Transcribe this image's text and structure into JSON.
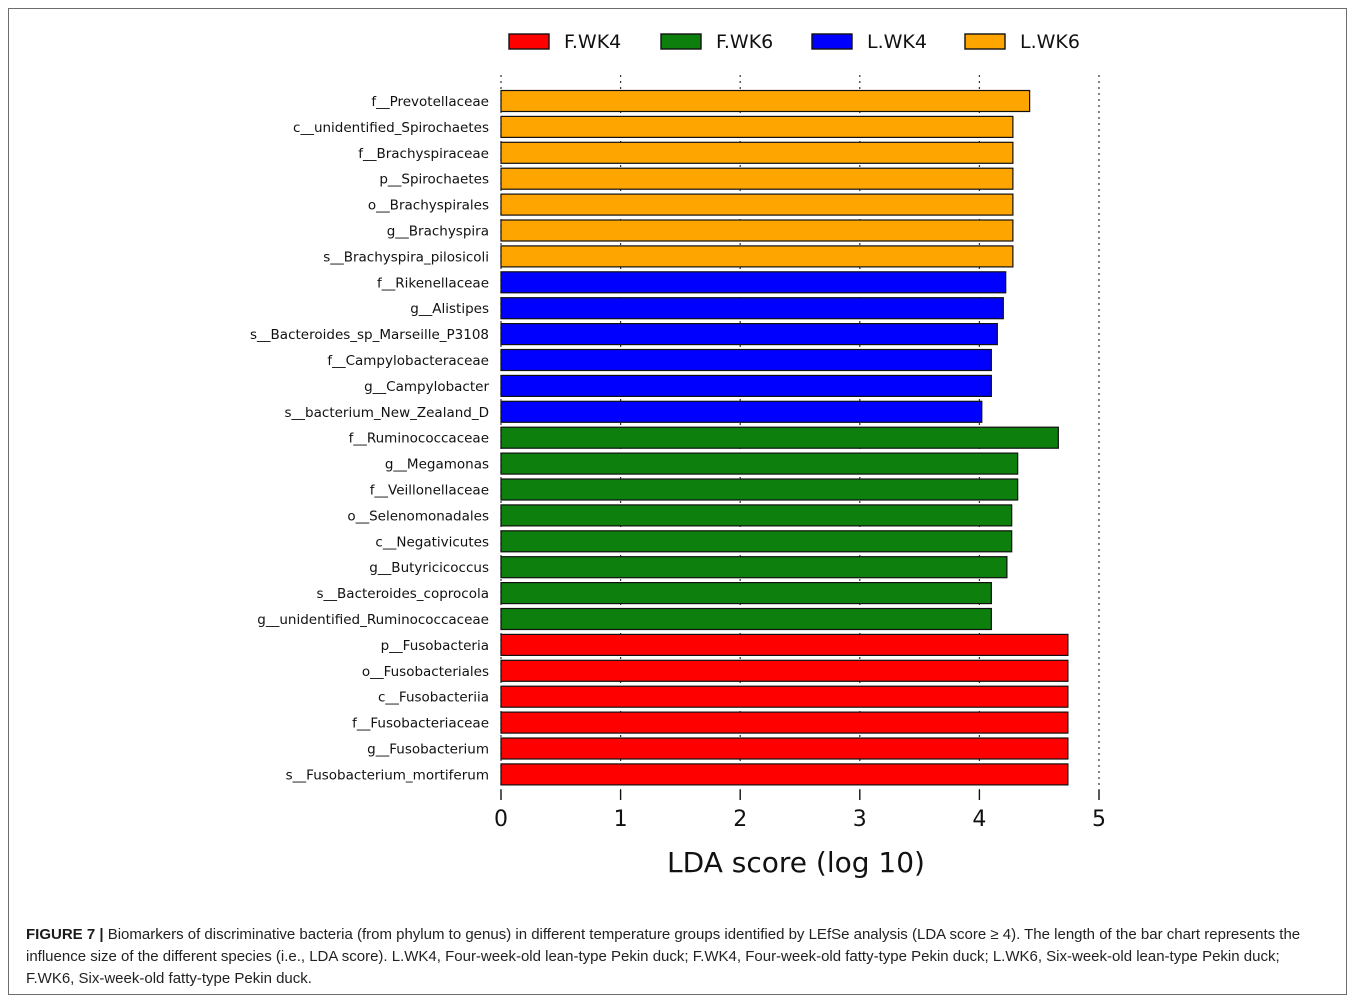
{
  "chart_data": {
    "type": "bar",
    "orientation": "horizontal",
    "xlabel": "LDA score (log 10)",
    "xlim": [
      0,
      5
    ],
    "xticks": [
      "0",
      "1",
      "2",
      "3",
      "4",
      "5"
    ],
    "grid": true,
    "legend_position": "top",
    "legend": [
      {
        "name": "F.WK4",
        "color": "#ff0000"
      },
      {
        "name": "F.WK6",
        "color": "#0d7f0d"
      },
      {
        "name": "L.WK4",
        "color": "#0000ff"
      },
      {
        "name": "L.WK6",
        "color": "#ffa500"
      }
    ],
    "categories": [
      "f__Prevotellaceae",
      "c__unidentified_Spirochaetes",
      "f__Brachyspiraceae",
      "p__Spirochaetes",
      "o__Brachyspirales",
      "g__Brachyspira",
      "s__Brachyspira_pilosicoli",
      "f__Rikenellaceae",
      "g__Alistipes",
      "s__Bacteroides_sp_Marseille_P3108",
      "f__Campylobacteraceae",
      "g__Campylobacter",
      "s__bacterium_New_Zealand_D",
      "f__Ruminococcaceae",
      "g__Megamonas",
      "f__Veillonellaceae",
      "o__Selenomonadales",
      "c__Negativicutes",
      "g__Butyricicoccus",
      "s__Bacteroides_coprocola",
      "g__unidentified_Ruminococcaceae",
      "p__Fusobacteria",
      "o__Fusobacteriales",
      "c__Fusobacteriia",
      "f__Fusobacteriaceae",
      "g__Fusobacterium",
      "s__Fusobacterium_mortiferum"
    ],
    "values": [
      4.42,
      4.28,
      4.28,
      4.28,
      4.28,
      4.28,
      4.28,
      4.22,
      4.2,
      4.15,
      4.1,
      4.1,
      4.02,
      4.66,
      4.32,
      4.32,
      4.27,
      4.27,
      4.23,
      4.1,
      4.1,
      4.74,
      4.74,
      4.74,
      4.74,
      4.74,
      4.74
    ],
    "groups": [
      "L.WK6",
      "L.WK6",
      "L.WK6",
      "L.WK6",
      "L.WK6",
      "L.WK6",
      "L.WK6",
      "L.WK4",
      "L.WK4",
      "L.WK4",
      "L.WK4",
      "L.WK4",
      "L.WK4",
      "F.WK6",
      "F.WK6",
      "F.WK6",
      "F.WK6",
      "F.WK6",
      "F.WK6",
      "F.WK6",
      "F.WK6",
      "F.WK4",
      "F.WK4",
      "F.WK4",
      "F.WK4",
      "F.WK4",
      "F.WK4"
    ]
  },
  "caption": {
    "label": "FIGURE 7 |",
    "text": " Biomarkers of discriminative bacteria (from phylum to genus) in different temperature groups identified by LEfSe analysis (LDA score ≥ 4). The length of the bar chart represents the influence size of the different species (i.e., LDA score). L.WK4, Four-week-old lean-type Pekin duck; F.WK4, Four-week-old fatty-type Pekin duck; L.WK6, Six-week-old lean-type Pekin duck; F.WK6, Six-week-old fatty-type Pekin duck."
  }
}
